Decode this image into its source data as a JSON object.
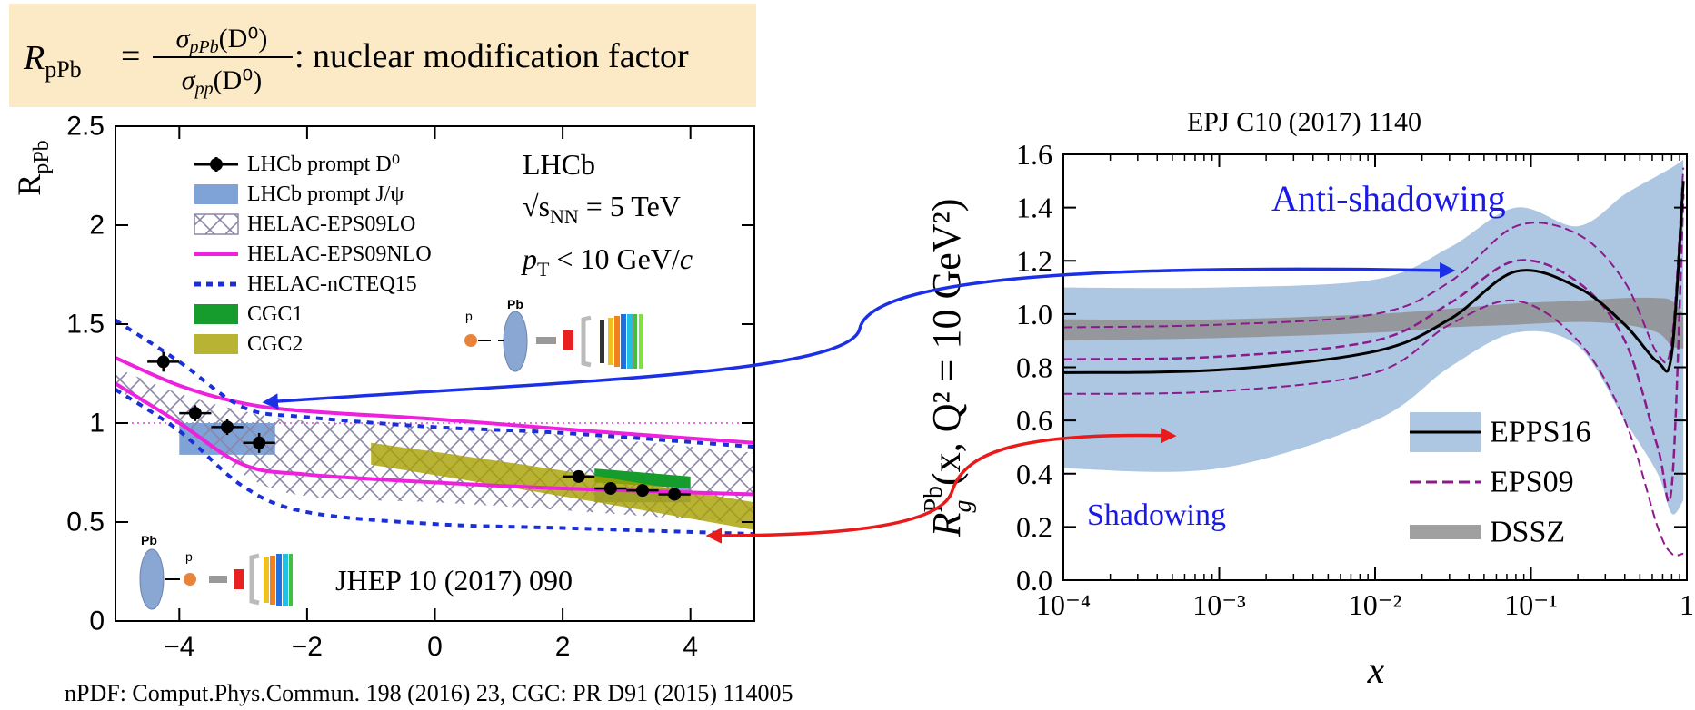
{
  "header": {
    "r": "R",
    "r_sub": "pPb",
    "eq": "=",
    "num": "σ",
    "num_sub": "pPb",
    "num_arg": "(D⁰)",
    "den": "σ",
    "den_sub": "pp",
    "den_arg": "(D⁰)",
    "caption": ": nuclear modification factor"
  },
  "chart_data": [
    {
      "type": "band",
      "ylabel": "R",
      "ylabel_sub": "pPb",
      "xlim": [
        -5,
        5
      ],
      "ylim": [
        0,
        2.5
      ],
      "xticks": [
        {
          "value": -4,
          "label": "−4"
        },
        {
          "value": -2,
          "label": "−2"
        },
        0,
        2,
        4
      ],
      "yticks": [
        0,
        0.5,
        1,
        1.5,
        2,
        2.5
      ],
      "refline": 1,
      "refline_color": "#e040e0",
      "legend": "top-left",
      "labels": {
        "experiment": "LHCb",
        "energy_s": "√s",
        "energy_sub": "NN",
        "energy_rest": " = 5 TeV",
        "pt_p": "p",
        "pt_sub": "T",
        "pt_rest": " < 10 GeV/",
        "pt_c": "c",
        "ref": "JHEP 10 (2017) 090",
        "icon_top_p": "p",
        "icon_top_pb": "Pb",
        "icon_bottom_pb": "Pb",
        "icon_bottom_p": "p"
      },
      "series": [
        {
          "name": "LHCb prompt D⁰",
          "style": "points",
          "color": "#000000",
          "x": [
            -4.25,
            -3.75,
            -3.25,
            -2.75,
            2.25,
            2.75,
            3.25,
            3.75
          ],
          "values": [
            1.31,
            1.05,
            0.98,
            0.9,
            0.73,
            0.67,
            0.66,
            0.64
          ],
          "errors": [
            0.05,
            0.04,
            0.04,
            0.05,
            0.03,
            0.03,
            0.03,
            0.03
          ],
          "xerr": [
            0.25,
            0.25,
            0.25,
            0.25,
            0.25,
            0.25,
            0.25,
            0.25
          ]
        },
        {
          "name": "LHCb prompt J/ψ",
          "style": "boxes",
          "color": "#7fa3d6",
          "x_low": [
            -4,
            2.5
          ],
          "x_high": [
            -2.5,
            4
          ],
          "lower": [
            0.84,
            0.6
          ],
          "upper": [
            1.0,
            0.67
          ]
        },
        {
          "name": "HELAC-EPS09LO",
          "style": "hatch-band",
          "color": "#8a86a6",
          "x": [
            -5,
            -4,
            -3,
            -2,
            0,
            2,
            5
          ],
          "lower": [
            1.17,
            1.0,
            0.74,
            0.63,
            0.6,
            0.56,
            0.49
          ],
          "upper": [
            1.28,
            1.15,
            1.06,
            1.01,
            0.98,
            0.94,
            0.85
          ]
        },
        {
          "name": "HELAC-EPS09NLO",
          "style": "line-band",
          "color": "#ee22dd",
          "x": [
            -5,
            -4,
            -3,
            -2,
            0,
            2,
            5
          ],
          "lower": [
            1.2,
            1.0,
            0.79,
            0.74,
            0.7,
            0.67,
            0.64
          ],
          "upper": [
            1.33,
            1.19,
            1.1,
            1.06,
            1.02,
            0.97,
            0.9
          ]
        },
        {
          "name": "HELAC-nCTEQ15",
          "style": "dashed-band",
          "color": "#1a2fd6",
          "x": [
            -5,
            -4,
            -3,
            -2,
            0,
            2,
            5
          ],
          "lower": [
            1.17,
            0.96,
            0.68,
            0.55,
            0.49,
            0.47,
            0.44
          ],
          "upper": [
            1.52,
            1.31,
            1.08,
            1.03,
            0.98,
            0.95,
            0.88
          ]
        },
        {
          "name": "CGC1",
          "style": "fill-band",
          "color": "#169c2c",
          "opacity": 1,
          "x": [
            2.5,
            4
          ],
          "lower": [
            0.7,
            0.67
          ],
          "upper": [
            0.77,
            0.73
          ]
        },
        {
          "name": "CGC2",
          "style": "fill-band",
          "color": "#a8a000",
          "opacity": 0.8,
          "x": [
            -1,
            2,
            5
          ],
          "lower": [
            0.79,
            0.63,
            0.46
          ],
          "upper": [
            0.9,
            0.76,
            0.6
          ]
        }
      ]
    },
    {
      "type": "band",
      "title": "EPJ C10  (2017) 1140",
      "xlabel": "x",
      "ylabel": "R",
      "ylabel_sub": "g",
      "ylabel_sup": "Pb",
      "ylabel_rest": "(x, Q² = 10 GeV²)",
      "xscale": "log",
      "xlim": [
        0.0001,
        1
      ],
      "ylim": [
        0,
        1.6
      ],
      "xticks": [
        {
          "value": 0.0001,
          "label": "10⁻⁴"
        },
        {
          "value": 0.001,
          "label": "10⁻³"
        },
        {
          "value": 0.01,
          "label": "10⁻²"
        },
        {
          "value": 0.1,
          "label": "10⁻¹"
        },
        1
      ],
      "yticks": [
        {
          "value": 0,
          "label": "0.0"
        },
        {
          "value": 0.2,
          "label": "0.2"
        },
        {
          "value": 0.4,
          "label": "0.4"
        },
        {
          "value": 0.6,
          "label": "0.6"
        },
        {
          "value": 0.8,
          "label": "0.8"
        },
        {
          "value": 1,
          "label": "1.0"
        },
        {
          "value": 1.2,
          "label": "1.2"
        },
        {
          "value": 1.4,
          "label": "1.4"
        },
        {
          "value": 1.6,
          "label": "1.6"
        }
      ],
      "refline": 1,
      "refline_color": "#000000",
      "legend": "bottom-right",
      "labels": {
        "anti": "Anti-shadowing",
        "shadow": "Shadowing"
      },
      "series": [
        {
          "name": "EPPS16",
          "style": "fill-band",
          "color": "#000000",
          "fill": "#adc6e2",
          "opacity": 1,
          "x": [
            0.0001,
            0.001,
            0.01,
            0.03,
            0.08,
            0.2,
            0.4,
            0.65,
            0.8,
            0.95
          ],
          "values": [
            0.78,
            0.79,
            0.86,
            0.98,
            1.16,
            1.1,
            0.96,
            0.82,
            0.85,
            1.5
          ],
          "lower": [
            0.42,
            0.42,
            0.6,
            0.8,
            0.93,
            0.88,
            0.6,
            0.4,
            0.25,
            0.3
          ],
          "upper": [
            1.1,
            1.1,
            1.13,
            1.25,
            1.4,
            1.33,
            1.45,
            1.52,
            1.55,
            1.58
          ]
        },
        {
          "name": "EPS09",
          "style": "dashed-band",
          "color": "#8b1a8b",
          "x": [
            0.0001,
            0.001,
            0.01,
            0.03,
            0.08,
            0.2,
            0.4,
            0.65,
            0.8,
            0.95
          ],
          "values": [
            0.83,
            0.84,
            0.9,
            1.04,
            1.2,
            1.12,
            0.9,
            0.5,
            0.35,
            1.45
          ],
          "lower": [
            0.7,
            0.71,
            0.78,
            0.96,
            1.05,
            0.9,
            0.6,
            0.2,
            0.1,
            0.1
          ],
          "upper": [
            0.95,
            0.96,
            1.0,
            1.12,
            1.33,
            1.3,
            1.12,
            0.85,
            0.9,
            1.55
          ]
        },
        {
          "name": "DSSZ",
          "style": "fill-band",
          "color": "#8f8f8f",
          "opacity": 0.85,
          "x": [
            0.0001,
            0.001,
            0.01,
            0.03,
            0.08,
            0.2,
            0.4,
            0.65,
            0.8,
            0.95
          ],
          "lower": [
            0.9,
            0.91,
            0.93,
            0.95,
            0.96,
            0.97,
            0.96,
            0.93,
            0.88,
            0.87
          ],
          "upper": [
            0.98,
            0.98,
            1.0,
            1.02,
            1.04,
            1.05,
            1.06,
            1.06,
            1.05,
            1.0
          ]
        }
      ]
    }
  ],
  "footer": "nPDF: Comput.Phys.Commun. 198 (2016) 23, CGC:  PR D91 (2015) 114005"
}
